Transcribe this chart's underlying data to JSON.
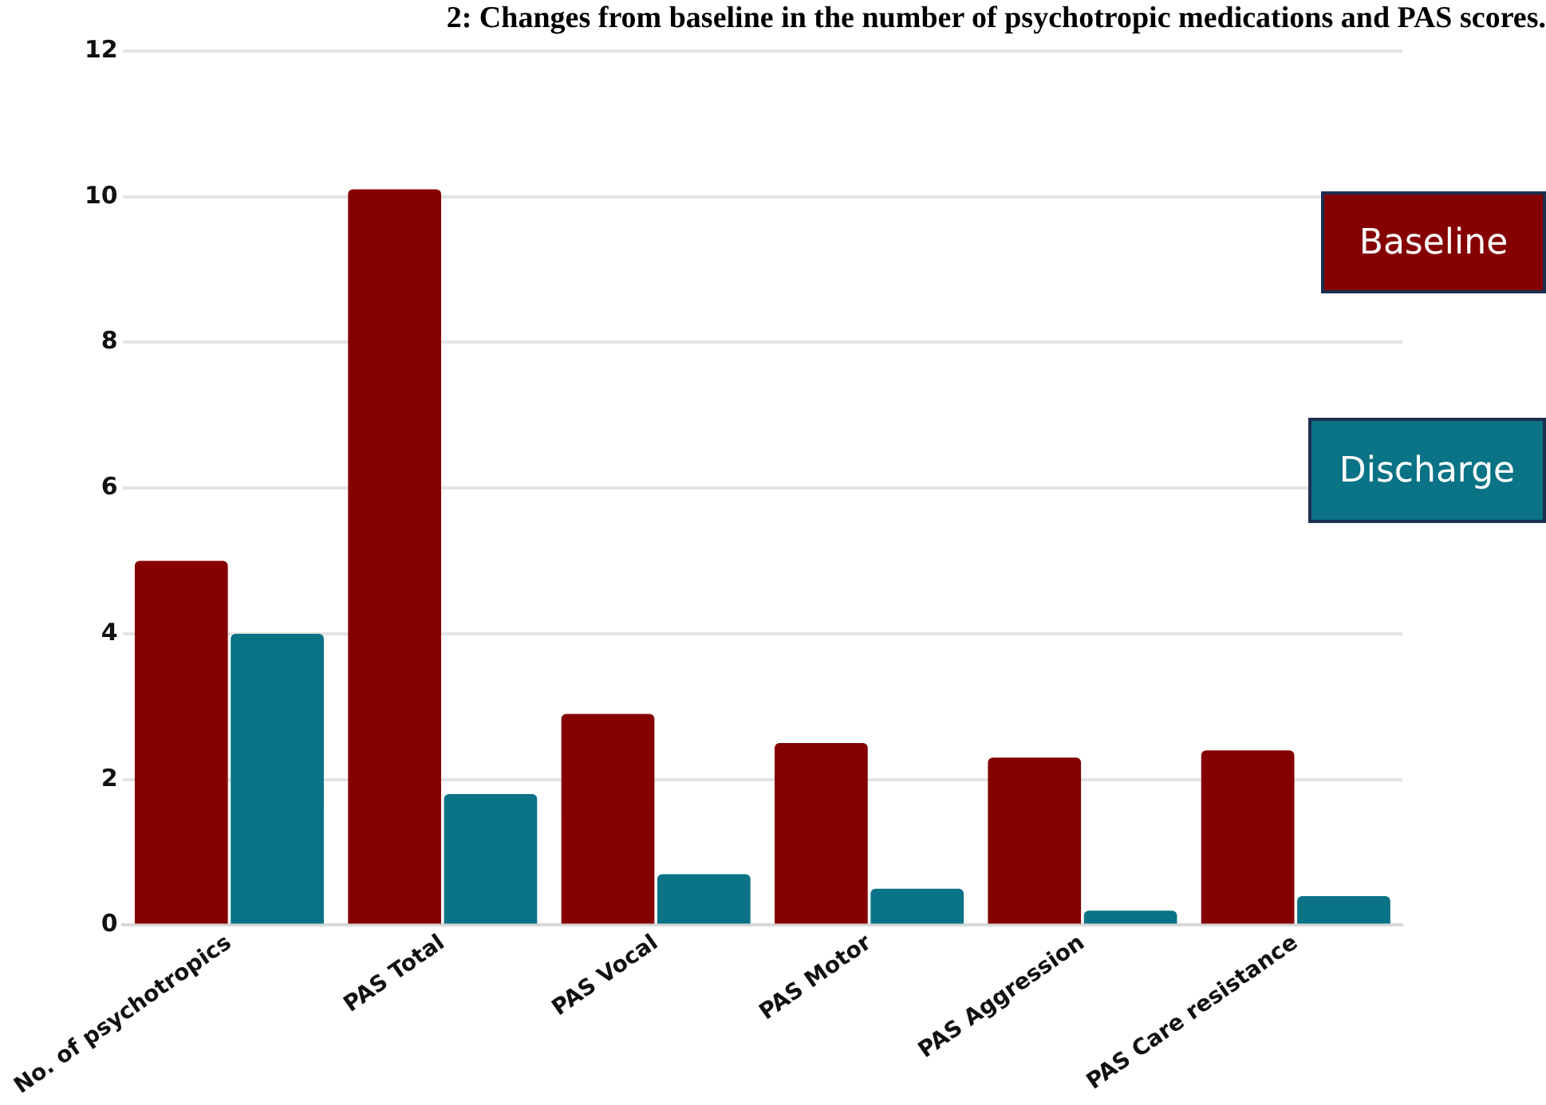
{
  "chart_data": {
    "type": "bar",
    "title": "2: Changes from baseline in the number of psychotropic medications and PAS scores.",
    "categories": [
      "No. of psychotropics",
      "PAS Total",
      "PAS Vocal",
      "PAS Motor",
      "PAS Aggression",
      "PAS Care resistance"
    ],
    "series": [
      {
        "name": "Baseline",
        "color": "#850000",
        "values": [
          5,
          10.1,
          2.9,
          2.5,
          2.3,
          2.4
        ]
      },
      {
        "name": "Discharge",
        "color": "#0a7385",
        "values": [
          4,
          1.8,
          0.7,
          0.5,
          0.2,
          0.4
        ]
      }
    ],
    "ylim": [
      0,
      12
    ],
    "yticks": [
      0,
      2,
      4,
      6,
      8,
      10,
      12
    ],
    "grid": "y",
    "legend": "right"
  }
}
